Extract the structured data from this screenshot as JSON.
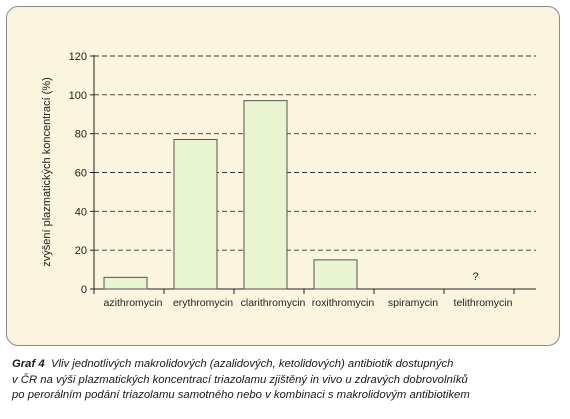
{
  "chart_data": {
    "type": "bar",
    "categories": [
      "azithromycin",
      "erythromycin",
      "clarithromycin",
      "roxithromycin",
      "spiramycin",
      "telithromycin"
    ],
    "values": [
      6,
      77,
      97,
      15,
      null,
      null
    ],
    "annotations": [
      {
        "category": "telithromycin",
        "text": "?"
      }
    ],
    "ylabel": "zvýšení plazmatických koncentrací (%)",
    "xlabel": "",
    "ylim": [
      0,
      120
    ],
    "yticks": [
      0,
      20,
      40,
      60,
      80,
      100,
      120
    ],
    "grid": "horizontal dashed",
    "colors": {
      "bar_fill": "#e9f5d0",
      "bar_stroke": "#555555",
      "panel_bg": "#fbf4de",
      "grid": "#333333"
    }
  },
  "caption": {
    "label": "Graf 4",
    "line1": "Vliv jednotlivých makrolidových (azalidových, ketolidových) antibiotik dostupných",
    "line2": "v ČR na výši plazmatických koncentrací triazolamu zjištěný in vivo u zdravých dobrovolníků",
    "line3": "po perorálním podání triazolamu samotného nebo v kombinaci s makrolidovým antibiotikem"
  }
}
